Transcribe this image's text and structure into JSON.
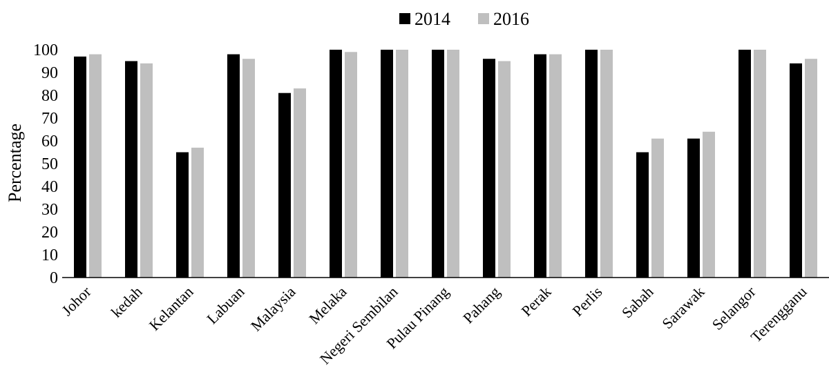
{
  "chart_data": {
    "type": "bar",
    "title": "",
    "xlabel": "",
    "ylabel": "Percentage",
    "ylim": [
      0,
      100
    ],
    "yticks": [
      0,
      10,
      20,
      30,
      40,
      50,
      60,
      70,
      80,
      90,
      100
    ],
    "grid": false,
    "legend_position": "top-center",
    "categories": [
      "Johor",
      "kedah",
      "Kelantan",
      "Labuan",
      "Malaysia",
      "Melaka",
      "Negeri Sembilan",
      "Pulau Pinang",
      "Pahang",
      "Perak",
      "Perlis",
      "Sabah",
      "Sarawak",
      "Selangor",
      "Terengganu"
    ],
    "series": [
      {
        "name": "2014",
        "color": "#000000",
        "values": [
          97,
          95,
          55,
          98,
          81,
          100,
          100,
          100,
          96,
          98,
          100,
          55,
          61,
          100,
          94
        ]
      },
      {
        "name": "2016",
        "color": "#bfbfbf",
        "values": [
          98,
          94,
          57,
          96,
          83,
          99,
          100,
          100,
          95,
          98,
          100,
          61,
          64,
          100,
          96
        ]
      }
    ]
  }
}
